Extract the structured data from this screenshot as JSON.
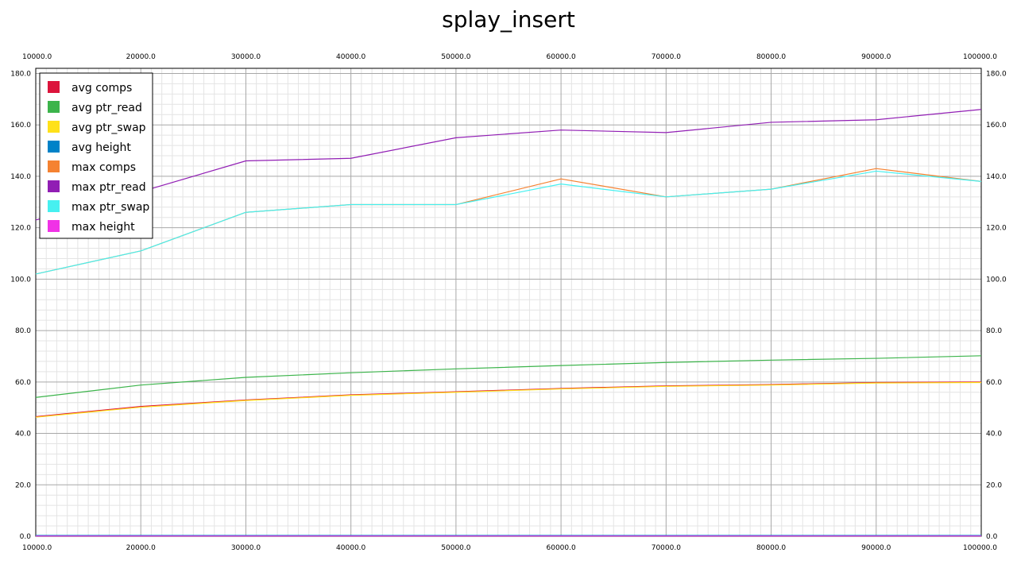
{
  "chart_data": {
    "type": "line",
    "title": "splay_insert",
    "xlabel": "",
    "ylabel": "",
    "x": [
      10000.0,
      20000.0,
      30000.0,
      40000.0,
      50000.0,
      60000.0,
      70000.0,
      80000.0,
      90000.0,
      100000.0
    ],
    "x_ticks": [
      "10000.0",
      "20000.0",
      "30000.0",
      "40000.0",
      "50000.0",
      "60000.0",
      "70000.0",
      "80000.0",
      "90000.0",
      "100000.0"
    ],
    "y_ticks": [
      "0.0",
      "20.0",
      "40.0",
      "60.0",
      "80.0",
      "100.0",
      "120.0",
      "140.0",
      "160.0",
      "180.0"
    ],
    "xlim": [
      10000,
      100000
    ],
    "ylim": [
      0,
      182
    ],
    "grid": true,
    "legend_position": "top-left",
    "series": [
      {
        "name": "avg comps",
        "color": "#dc143c",
        "values": [
          46.5,
          50.5,
          53.0,
          55.0,
          56.2,
          57.5,
          58.5,
          59.0,
          59.8,
          60.0
        ]
      },
      {
        "name": "avg ptr_read",
        "color": "#3cb44b",
        "values": [
          54.0,
          58.8,
          61.8,
          63.6,
          65.1,
          66.4,
          67.6,
          68.5,
          69.2,
          70.2
        ]
      },
      {
        "name": "avg ptr_swap",
        "color": "#ffe119",
        "values": [
          46.3,
          50.2,
          52.8,
          54.8,
          56.0,
          57.3,
          58.3,
          58.8,
          59.6,
          59.8
        ]
      },
      {
        "name": "avg height",
        "color": "#0082c8",
        "values": [
          0.3,
          0.3,
          0.3,
          0.3,
          0.3,
          0.3,
          0.3,
          0.3,
          0.3,
          0.3
        ]
      },
      {
        "name": "max comps",
        "color": "#f58231",
        "values": [
          102,
          111,
          126,
          129,
          129,
          139,
          132,
          135,
          143,
          138
        ]
      },
      {
        "name": "max ptr_read",
        "color": "#911eb4",
        "values": [
          123,
          134,
          146,
          147,
          155,
          158,
          157,
          161,
          162,
          166
        ]
      },
      {
        "name": "max ptr_swap",
        "color": "#46f0f0",
        "values": [
          102,
          111,
          126,
          129,
          129,
          137,
          132,
          135,
          142,
          138
        ]
      },
      {
        "name": "max height",
        "color": "#f032e6",
        "values": [
          0.1,
          0.1,
          0.1,
          0.1,
          0.1,
          0.1,
          0.1,
          0.1,
          0.1,
          0.1
        ]
      }
    ]
  }
}
